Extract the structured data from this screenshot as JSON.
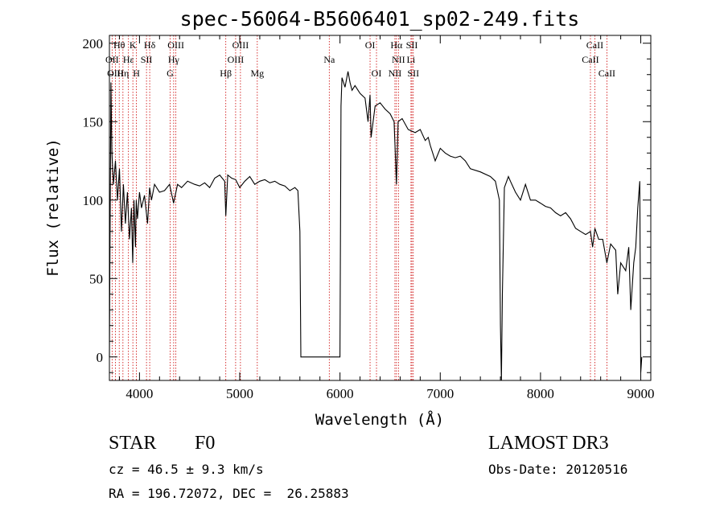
{
  "chart_data": {
    "type": "line",
    "title": "spec-56064-B5606401_sp02-249.fits",
    "xlabel": "Wavelength (Å)",
    "ylabel": "Flux (relative)",
    "xlim": [
      3700,
      9100
    ],
    "ylim": [
      -15,
      205
    ],
    "x_ticks": [
      4000,
      5000,
      6000,
      7000,
      8000,
      9000
    ],
    "y_ticks": [
      0,
      50,
      100,
      150,
      200
    ],
    "series": [
      {
        "name": "spectrum",
        "x": [
          3700,
          3705,
          3715,
          3725,
          3740,
          3760,
          3780,
          3800,
          3820,
          3840,
          3860,
          3880,
          3900,
          3920,
          3933,
          3945,
          3960,
          3968,
          3980,
          4000,
          4020,
          4050,
          4080,
          4101,
          4120,
          4150,
          4200,
          4250,
          4300,
          4340,
          4380,
          4420,
          4480,
          4550,
          4600,
          4650,
          4700,
          4750,
          4800,
          4850,
          4861,
          4880,
          4920,
          4960,
          5000,
          5050,
          5100,
          5150,
          5200,
          5250,
          5300,
          5350,
          5400,
          5450,
          5500,
          5550,
          5580,
          5600,
          5610,
          5650,
          5700,
          5800,
          5900,
          6000,
          6010,
          6020,
          6050,
          6080,
          6100,
          6120,
          6150,
          6200,
          6250,
          6280,
          6300,
          6310,
          6350,
          6400,
          6450,
          6500,
          6540,
          6563,
          6580,
          6620,
          6680,
          6750,
          6800,
          6850,
          6880,
          6900,
          6950,
          7000,
          7050,
          7100,
          7150,
          7200,
          7250,
          7300,
          7400,
          7500,
          7550,
          7590,
          7600,
          7610,
          7620,
          7640,
          7680,
          7700,
          7750,
          7800,
          7850,
          7900,
          7950,
          8000,
          8050,
          8100,
          8150,
          8200,
          8250,
          8300,
          8350,
          8400,
          8450,
          8498,
          8520,
          8542,
          8580,
          8620,
          8662,
          8700,
          8750,
          8770,
          8800,
          8850,
          8880,
          8900,
          8930,
          8950,
          8970,
          8990,
          9000,
          9010
        ],
        "y": [
          0,
          60,
          175,
          130,
          110,
          125,
          100,
          120,
          80,
          110,
          85,
          105,
          75,
          95,
          60,
          100,
          70,
          100,
          88,
          105,
          95,
          103,
          85,
          108,
          100,
          110,
          105,
          106,
          110,
          98,
          110,
          108,
          112,
          110,
          109,
          111,
          108,
          114,
          116,
          112,
          90,
          116,
          114,
          113,
          108,
          112,
          115,
          110,
          112,
          113,
          111,
          112,
          110,
          109,
          106,
          108,
          106,
          80,
          0,
          0,
          0,
          0,
          0,
          0,
          160,
          178,
          172,
          182,
          175,
          170,
          173,
          168,
          165,
          150,
          167,
          140,
          160,
          162,
          158,
          155,
          150,
          110,
          150,
          152,
          145,
          143,
          145,
          138,
          140,
          135,
          125,
          133,
          130,
          128,
          127,
          128,
          125,
          120,
          118,
          115,
          112,
          100,
          20,
          -15,
          40,
          108,
          115,
          112,
          105,
          100,
          110,
          100,
          100,
          98,
          96,
          95,
          92,
          90,
          92,
          88,
          82,
          80,
          78,
          80,
          70,
          82,
          75,
          75,
          60,
          72,
          68,
          40,
          60,
          55,
          70,
          30,
          60,
          70,
          95,
          112,
          -10,
          0
        ],
        "color": "#000000"
      }
    ],
    "spectral_lines": [
      {
        "label": "Hθ",
        "wavelength": 3798,
        "row": 1
      },
      {
        "label": "OII",
        "wavelength": 3727,
        "row": 2
      },
      {
        "label": "OIII",
        "wavelength": 3760,
        "row": 3
      },
      {
        "label": "Hε",
        "wavelength": 3890,
        "row": 2
      },
      {
        "label": "K",
        "wavelength": 3934,
        "row": 1
      },
      {
        "label": "Hη",
        "wavelength": 3835,
        "row": 3
      },
      {
        "label": "SII",
        "wavelength": 4070,
        "row": 2
      },
      {
        "label": "H",
        "wavelength": 3969,
        "row": 3
      },
      {
        "label": "Hδ",
        "wavelength": 4102,
        "row": 1
      },
      {
        "label": "OIII",
        "wavelength": 4363,
        "row": 1
      },
      {
        "label": "Hγ",
        "wavelength": 4341,
        "row": 2
      },
      {
        "label": "G",
        "wavelength": 4305,
        "row": 3
      },
      {
        "label": "OIII",
        "wavelength": 5007,
        "row": 1
      },
      {
        "label": "OIII",
        "wavelength": 4959,
        "row": 2
      },
      {
        "label": "Hβ",
        "wavelength": 4861,
        "row": 3
      },
      {
        "label": "Mg",
        "wavelength": 5175,
        "row": 3
      },
      {
        "label": "Na",
        "wavelength": 5893,
        "row": 2
      },
      {
        "label": "OI",
        "wavelength": 6300,
        "row": 1
      },
      {
        "label": "OI",
        "wavelength": 6364,
        "row": 3
      },
      {
        "label": "Hα",
        "wavelength": 6563,
        "row": 1
      },
      {
        "label": "SII",
        "wavelength": 6717,
        "row": 1
      },
      {
        "label": "NII",
        "wavelength": 6583,
        "row": 2
      },
      {
        "label": "Li",
        "wavelength": 6708,
        "row": 2
      },
      {
        "label": "NII",
        "wavelength": 6548,
        "row": 3
      },
      {
        "label": "SII",
        "wavelength": 6731,
        "row": 3
      },
      {
        "label": "CaII",
        "wavelength": 8542,
        "row": 1
      },
      {
        "label": "CaII",
        "wavelength": 8498,
        "row": 2
      },
      {
        "label": "CaII",
        "wavelength": 8662,
        "row": 3
      }
    ],
    "line_color": "#cc0000"
  },
  "info": {
    "object_class": "STAR",
    "subclass": "F0",
    "survey": "LAMOST DR3",
    "redshift": "cz = 46.5 ± 9.3 km/s",
    "obs_date": "Obs-Date: 20120516",
    "coords": "RA = 196.72072, DEC =  26.25883"
  }
}
